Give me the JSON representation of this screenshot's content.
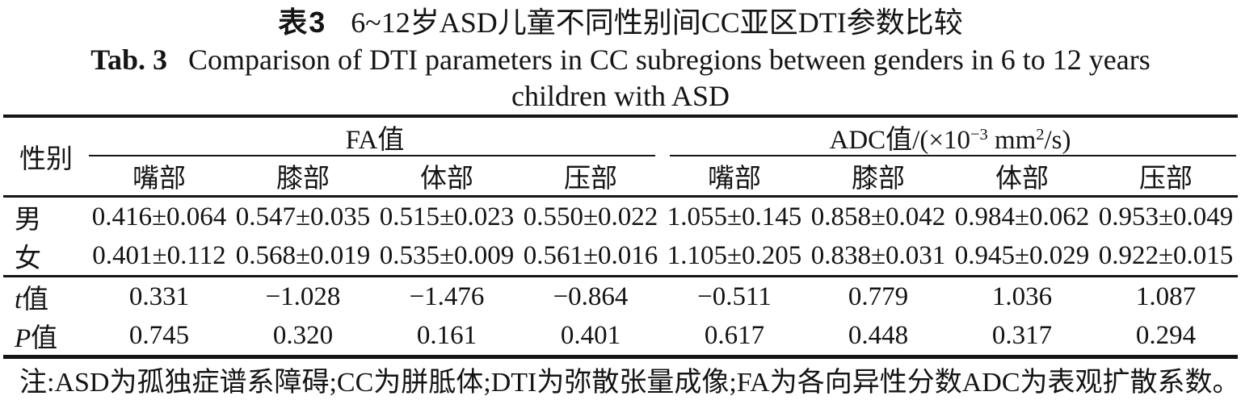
{
  "colors": {
    "background": "#ffffff",
    "text": "#141414",
    "rule": "#141414"
  },
  "caption": {
    "zh": {
      "label": "表3",
      "text": "6~12岁ASD儿童不同性别间CC亚区DTI参数比较"
    },
    "en": {
      "label": "Tab. 3",
      "text": "Comparison of DTI parameters in CC subregions between genders in 6 to 12 years",
      "text2": "children with ASD"
    }
  },
  "table": {
    "gender_header": "性别",
    "group_fa": "FA值",
    "group_adc": {
      "prefix": "ADC值/(×10",
      "sup1": "−3",
      "mid": " mm",
      "sup2": "2",
      "suffix": "/s)"
    },
    "subheaders": [
      "嘴部",
      "膝部",
      "体部",
      "压部",
      "嘴部",
      "膝部",
      "体部",
      "压部"
    ],
    "rows": [
      {
        "label_italic": "",
        "label_text": "男",
        "values": [
          "0.416±0.064",
          "0.547±0.035",
          "0.515±0.023",
          "0.550±0.022",
          "1.055±0.145",
          "0.858±0.042",
          "0.984±0.062",
          "0.953±0.049"
        ]
      },
      {
        "label_italic": "",
        "label_text": "女",
        "values": [
          "0.401±0.112",
          "0.568±0.019",
          "0.535±0.009",
          "0.561±0.016",
          "1.105±0.205",
          "0.838±0.031",
          "0.945±0.029",
          "0.922±0.015"
        ]
      },
      {
        "label_italic": "t",
        "label_text": "值",
        "values": [
          "0.331",
          "−1.028",
          "−1.476",
          "−0.864",
          "−0.511",
          "0.779",
          "1.036",
          "1.087"
        ]
      },
      {
        "label_italic": "P",
        "label_text": "值",
        "values": [
          "0.745",
          "0.320",
          "0.161",
          "0.401",
          "0.617",
          "0.448",
          "0.317",
          "0.294"
        ]
      }
    ]
  },
  "note": "注:ASD为孤独症谱系障碍;CC为胼胝体;DTI为弥散张量成像;FA为各向异性分数ADC为表观扩散系数。"
}
